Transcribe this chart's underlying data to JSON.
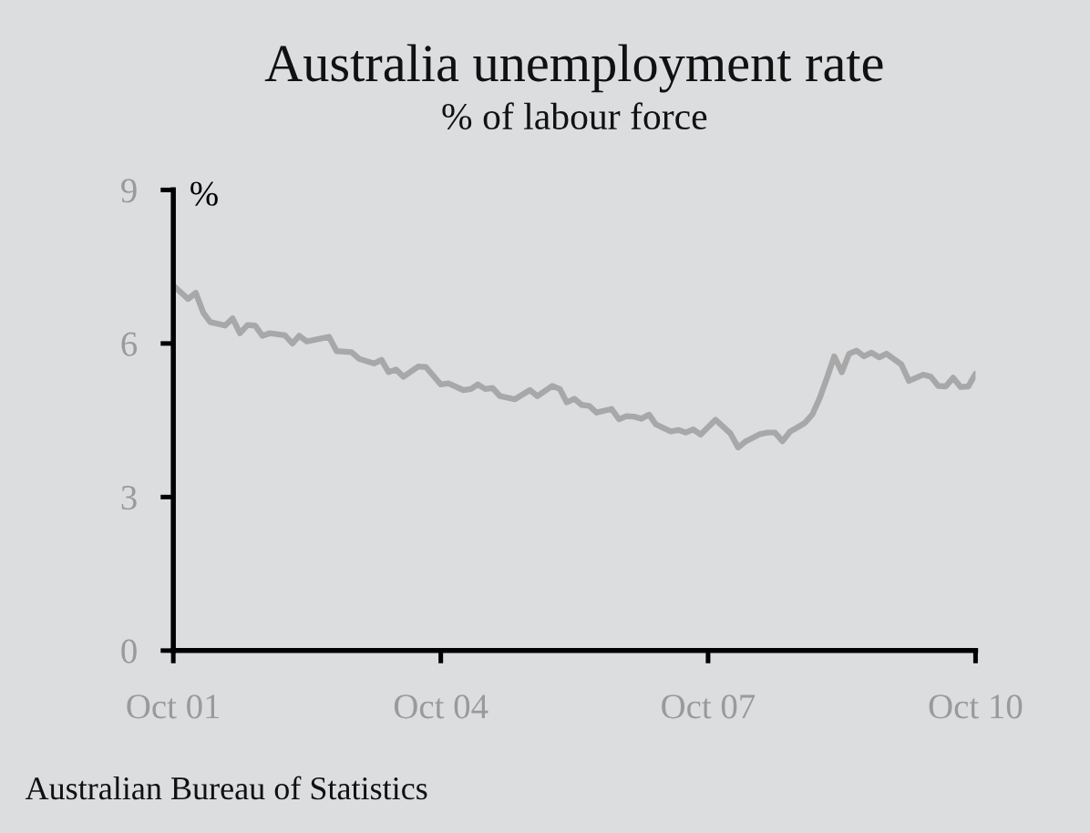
{
  "chart_data": {
    "type": "line",
    "title": "Australia unemployment rate",
    "subtitle": "% of labour force",
    "ylabel": "%",
    "annotations": [
      "Australian Bureau of Statistics"
    ],
    "x": [
      "2001-10",
      "2001-12",
      "2002-01",
      "2002-02",
      "2002-03",
      "2002-05",
      "2002-06",
      "2002-07",
      "2002-08",
      "2002-09",
      "2002-10",
      "2002-11",
      "2003-01",
      "2003-02",
      "2003-03",
      "2003-04",
      "2003-07",
      "2003-08",
      "2003-10",
      "2003-11",
      "2004-01",
      "2004-02",
      "2004-03",
      "2004-04",
      "2004-05",
      "2004-07",
      "2004-08",
      "2004-10",
      "2004-11",
      "2005-01",
      "2005-02",
      "2005-03",
      "2005-04",
      "2005-05",
      "2005-06",
      "2005-08",
      "2005-10",
      "2005-11",
      "2006-01",
      "2006-02",
      "2006-03",
      "2006-04",
      "2006-05",
      "2006-06",
      "2006-07",
      "2006-09",
      "2006-10",
      "2006-11",
      "2006-12",
      "2007-01",
      "2007-02",
      "2007-03",
      "2007-05",
      "2007-06",
      "2007-07",
      "2007-08",
      "2007-09",
      "2007-11",
      "2008-01",
      "2008-02",
      "2008-03",
      "2008-05",
      "2008-06",
      "2008-07",
      "2008-08",
      "2008-09",
      "2008-10",
      "2008-11",
      "2008-12",
      "2009-01",
      "2009-02",
      "2009-03",
      "2009-04",
      "2009-05",
      "2009-06",
      "2009-07",
      "2009-08",
      "2009-09",
      "2009-10",
      "2009-12",
      "2010-01",
      "2010-03",
      "2010-04",
      "2010-05",
      "2010-06",
      "2010-07",
      "2010-08",
      "2010-09",
      "2010-10"
    ],
    "series": [
      {
        "color": "#a8a8a8",
        "values": [
          7.13,
          6.87,
          6.99,
          6.6,
          6.42,
          6.35,
          6.49,
          6.2,
          6.36,
          6.35,
          6.15,
          6.2,
          6.16,
          6.0,
          6.15,
          6.04,
          6.13,
          5.85,
          5.83,
          5.7,
          5.61,
          5.68,
          5.44,
          5.49,
          5.35,
          5.55,
          5.54,
          5.2,
          5.22,
          5.09,
          5.11,
          5.2,
          5.11,
          5.13,
          4.97,
          4.91,
          5.09,
          4.97,
          5.17,
          5.11,
          4.85,
          4.92,
          4.8,
          4.78,
          4.65,
          4.72,
          4.52,
          4.58,
          4.57,
          4.53,
          4.61,
          4.42,
          4.28,
          4.31,
          4.26,
          4.32,
          4.22,
          4.51,
          4.24,
          3.97,
          4.08,
          4.23,
          4.26,
          4.26,
          4.09,
          4.28,
          4.36,
          4.45,
          4.61,
          4.94,
          5.35,
          5.75,
          5.44,
          5.8,
          5.86,
          5.75,
          5.82,
          5.73,
          5.8,
          5.59,
          5.27,
          5.39,
          5.35,
          5.17,
          5.16,
          5.33,
          5.15,
          5.16,
          5.41
        ]
      }
    ],
    "xlim": [
      "2001-10",
      "2010-10"
    ],
    "xticks": [
      {
        "value": "2001-10",
        "label": "Oct 01"
      },
      {
        "value": "2004-10",
        "label": "Oct 04"
      },
      {
        "value": "2007-10",
        "label": "Oct 07"
      },
      {
        "value": "2010-10",
        "label": "Oct 10"
      }
    ],
    "ylim": [
      0,
      9
    ],
    "yticks": [
      0,
      3,
      6,
      9
    ],
    "grid": false,
    "legend": false
  }
}
